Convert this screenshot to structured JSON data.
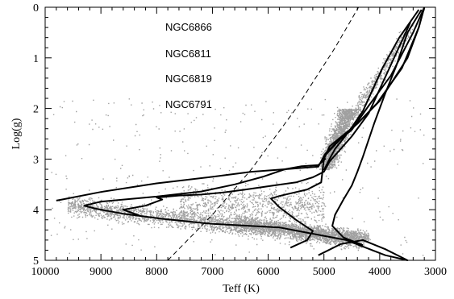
{
  "chart_data": {
    "type": "scatter",
    "title": "",
    "xlabel": "Teff (K)",
    "ylabel": "Log(g)",
    "xlim": [
      10000,
      3000
    ],
    "ylim": [
      5,
      0
    ],
    "x_reversed": true,
    "y_reversed": true,
    "x_ticks": [
      10000,
      9000,
      8000,
      7000,
      6000,
      5000,
      4000,
      3000
    ],
    "y_ticks": [
      0,
      1,
      2,
      3,
      4,
      5
    ],
    "grid": false,
    "point_color": "#a0a0a0",
    "line_color": "#000000",
    "annotations": [
      "NGC6866",
      "NGC6811",
      "NGC6819",
      "NGC6791"
    ],
    "reference_line": {
      "style": "dashed",
      "points": [
        [
          7800,
          5.0
        ],
        [
          7000,
          4.1
        ],
        [
          6300,
          3.2
        ],
        [
          5500,
          2.0
        ],
        [
          4800,
          0.8
        ],
        [
          4380,
          0.0
        ]
      ]
    },
    "series": [
      {
        "style": "solid",
        "points": [
          [
            5100,
            4.9
          ],
          [
            4700,
            4.68
          ],
          [
            4300,
            4.6
          ],
          [
            3900,
            4.78
          ],
          [
            3500,
            5.0
          ],
          [
            3900,
            4.9
          ],
          [
            4600,
            4.6
          ],
          [
            5800,
            4.35
          ],
          [
            7000,
            4.28
          ],
          [
            7900,
            4.18
          ],
          [
            8600,
            4.08
          ],
          [
            9100,
            3.98
          ],
          [
            9300,
            3.92
          ],
          [
            9000,
            3.84
          ],
          [
            8000,
            3.74
          ],
          [
            7200,
            3.64
          ],
          [
            6600,
            3.5
          ],
          [
            6100,
            3.35
          ],
          [
            5700,
            3.2
          ],
          [
            5400,
            3.14
          ],
          [
            5100,
            3.12
          ],
          [
            4980,
            3.0
          ],
          [
            5000,
            2.95
          ],
          [
            4700,
            2.6
          ],
          [
            4500,
            2.42
          ],
          [
            4200,
            1.95
          ],
          [
            3800,
            1.35
          ],
          [
            3400,
            0.5
          ],
          [
            3200,
            0.0
          ]
        ]
      },
      {
        "style": "solid",
        "points": [
          [
            9800,
            3.82
          ],
          [
            9700,
            3.8
          ],
          [
            9000,
            3.65
          ],
          [
            8000,
            3.48
          ],
          [
            7000,
            3.35
          ],
          [
            6300,
            3.25
          ],
          [
            5700,
            3.2
          ],
          [
            5100,
            3.15
          ],
          [
            4980,
            2.9
          ],
          [
            4800,
            2.7
          ],
          [
            4400,
            2.3
          ],
          [
            4050,
            1.9
          ],
          [
            3600,
            1.2
          ],
          [
            3300,
            0.4
          ],
          [
            3200,
            0.0
          ]
        ]
      },
      {
        "style": "solid",
        "points": [
          [
            5600,
            4.75
          ],
          [
            5300,
            4.6
          ],
          [
            5200,
            4.42
          ],
          [
            5500,
            4.2
          ],
          [
            5800,
            3.95
          ],
          [
            5950,
            3.78
          ],
          [
            5800,
            3.73
          ],
          [
            5300,
            3.6
          ],
          [
            5050,
            3.46
          ],
          [
            5000,
            3.0
          ],
          [
            4900,
            2.75
          ],
          [
            4400,
            2.3
          ],
          [
            4000,
            1.85
          ],
          [
            3500,
            1.0
          ],
          [
            3300,
            0.4
          ],
          [
            3200,
            0.0
          ]
        ]
      },
      {
        "style": "solid",
        "points": [
          [
            4300,
            4.7
          ],
          [
            4650,
            4.55
          ],
          [
            4850,
            4.32
          ],
          [
            4800,
            4.1
          ],
          [
            4650,
            3.8
          ],
          [
            4500,
            3.52
          ],
          [
            4400,
            3.25
          ],
          [
            4300,
            2.95
          ],
          [
            4100,
            2.3
          ],
          [
            3900,
            1.7
          ],
          [
            3700,
            1.15
          ],
          [
            3500,
            0.5
          ],
          [
            3250,
            0.05
          ]
        ]
      },
      {
        "style": "solid",
        "points": [
          [
            5000,
            3.22
          ],
          [
            4900,
            3.0
          ],
          [
            4800,
            2.8
          ],
          [
            4550,
            2.45
          ],
          [
            4300,
            2.05
          ],
          [
            3950,
            1.2
          ],
          [
            3650,
            0.6
          ],
          [
            3300,
            0.05
          ]
        ]
      },
      {
        "style": "solid",
        "points": [
          [
            8300,
            4.12
          ],
          [
            8600,
            4.0
          ],
          [
            8200,
            3.92
          ],
          [
            7900,
            3.8
          ],
          [
            8000,
            3.76
          ],
          [
            7600,
            3.72
          ],
          [
            7200,
            3.7
          ],
          [
            6800,
            3.66
          ],
          [
            6400,
            3.6
          ],
          [
            5900,
            3.52
          ],
          [
            5500,
            3.46
          ],
          [
            5200,
            3.36
          ],
          [
            5000,
            3.25
          ],
          [
            4900,
            3.05
          ],
          [
            4700,
            2.8
          ],
          [
            4500,
            2.55
          ],
          [
            4200,
            2.1
          ],
          [
            3950,
            1.5
          ],
          [
            3700,
            0.9
          ],
          [
            3450,
            0.3
          ]
        ]
      }
    ]
  },
  "page": {
    "x_tick_labels": [
      "10000",
      "9000",
      "8000",
      "7000",
      "6000",
      "5000",
      "4000",
      "3000"
    ],
    "y_tick_labels": [
      "0",
      "1",
      "2",
      "3",
      "4",
      "5"
    ]
  }
}
